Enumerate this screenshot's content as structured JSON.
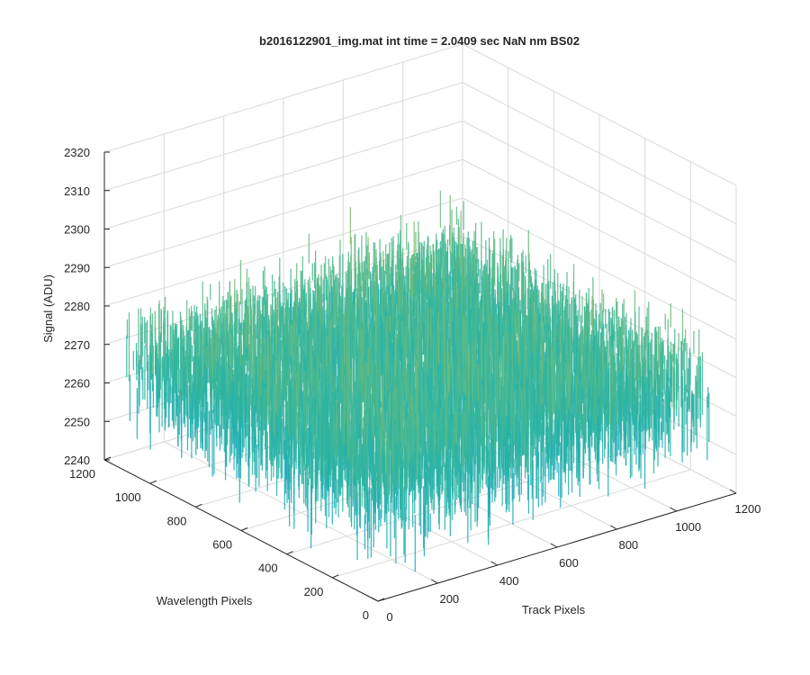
{
  "chart_data": {
    "type": "surface",
    "title": "b2016122901_img.mat int time = 2.0409 sec  NaN nm BS02",
    "xlabel": "Track Pixels",
    "ylabel": "Wavelength Pixels",
    "zlabel": "Signal (ADU)",
    "xlim": [
      0,
      1200
    ],
    "ylim": [
      0,
      1200
    ],
    "zlim": [
      2240,
      2320
    ],
    "x_ticks": [
      "0",
      "200",
      "400",
      "600",
      "800",
      "1000",
      "1200"
    ],
    "y_ticks": [
      "0",
      "200",
      "400",
      "600",
      "800",
      "1000",
      "1200"
    ],
    "z_ticks": [
      "2240",
      "2250",
      "2260",
      "2270",
      "2280",
      "2290",
      "2300",
      "2310",
      "2320"
    ],
    "data_extent": {
      "x": [
        1,
        1100
      ],
      "y": [
        1,
        1100
      ]
    },
    "z_mean": 2274,
    "z_noise_range": [
      2245,
      2305
    ],
    "grid": true,
    "colormap": "parula",
    "colors": {
      "low": "#0a9fd8",
      "mid": "#2eb5a0",
      "high": "#c9c34a"
    }
  }
}
